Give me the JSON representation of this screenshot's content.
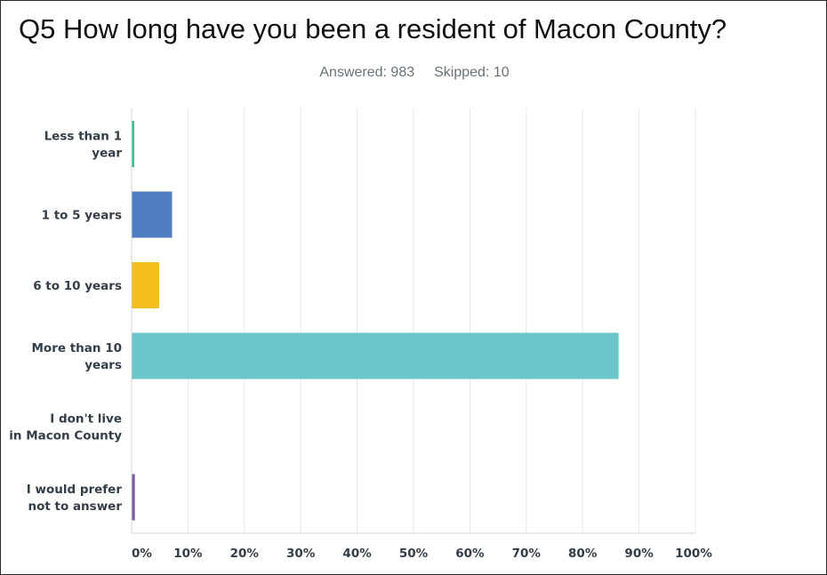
{
  "question": {
    "title": "Q5 How long have you been a resident of Macon County?",
    "answered": "Answered: 983",
    "skipped": "Skipped: 10"
  },
  "chart_data": {
    "type": "bar",
    "orientation": "horizontal",
    "categories": [
      [
        "Less than 1",
        "year"
      ],
      [
        "1 to 5 years"
      ],
      [
        "6 to 10 years"
      ],
      [
        "More than 10",
        "years"
      ],
      [
        "I don't live",
        "in Macon County"
      ],
      [
        "I would prefer",
        "not to answer"
      ]
    ],
    "values": [
      0.3,
      7.1,
      4.8,
      86.3,
      0.0,
      0.5
    ],
    "colors": [
      "#3fbf8e",
      "#507cbf",
      "#f5be1f",
      "#6cc6ca",
      "#e07a5a",
      "#7b5c9e"
    ],
    "xlim": [
      0,
      100
    ],
    "ticks": [
      "0%",
      "10%",
      "20%",
      "30%",
      "40%",
      "50%",
      "60%",
      "70%",
      "80%",
      "90%",
      "100%"
    ],
    "grid": true,
    "title": "",
    "xlabel": "",
    "ylabel": ""
  }
}
